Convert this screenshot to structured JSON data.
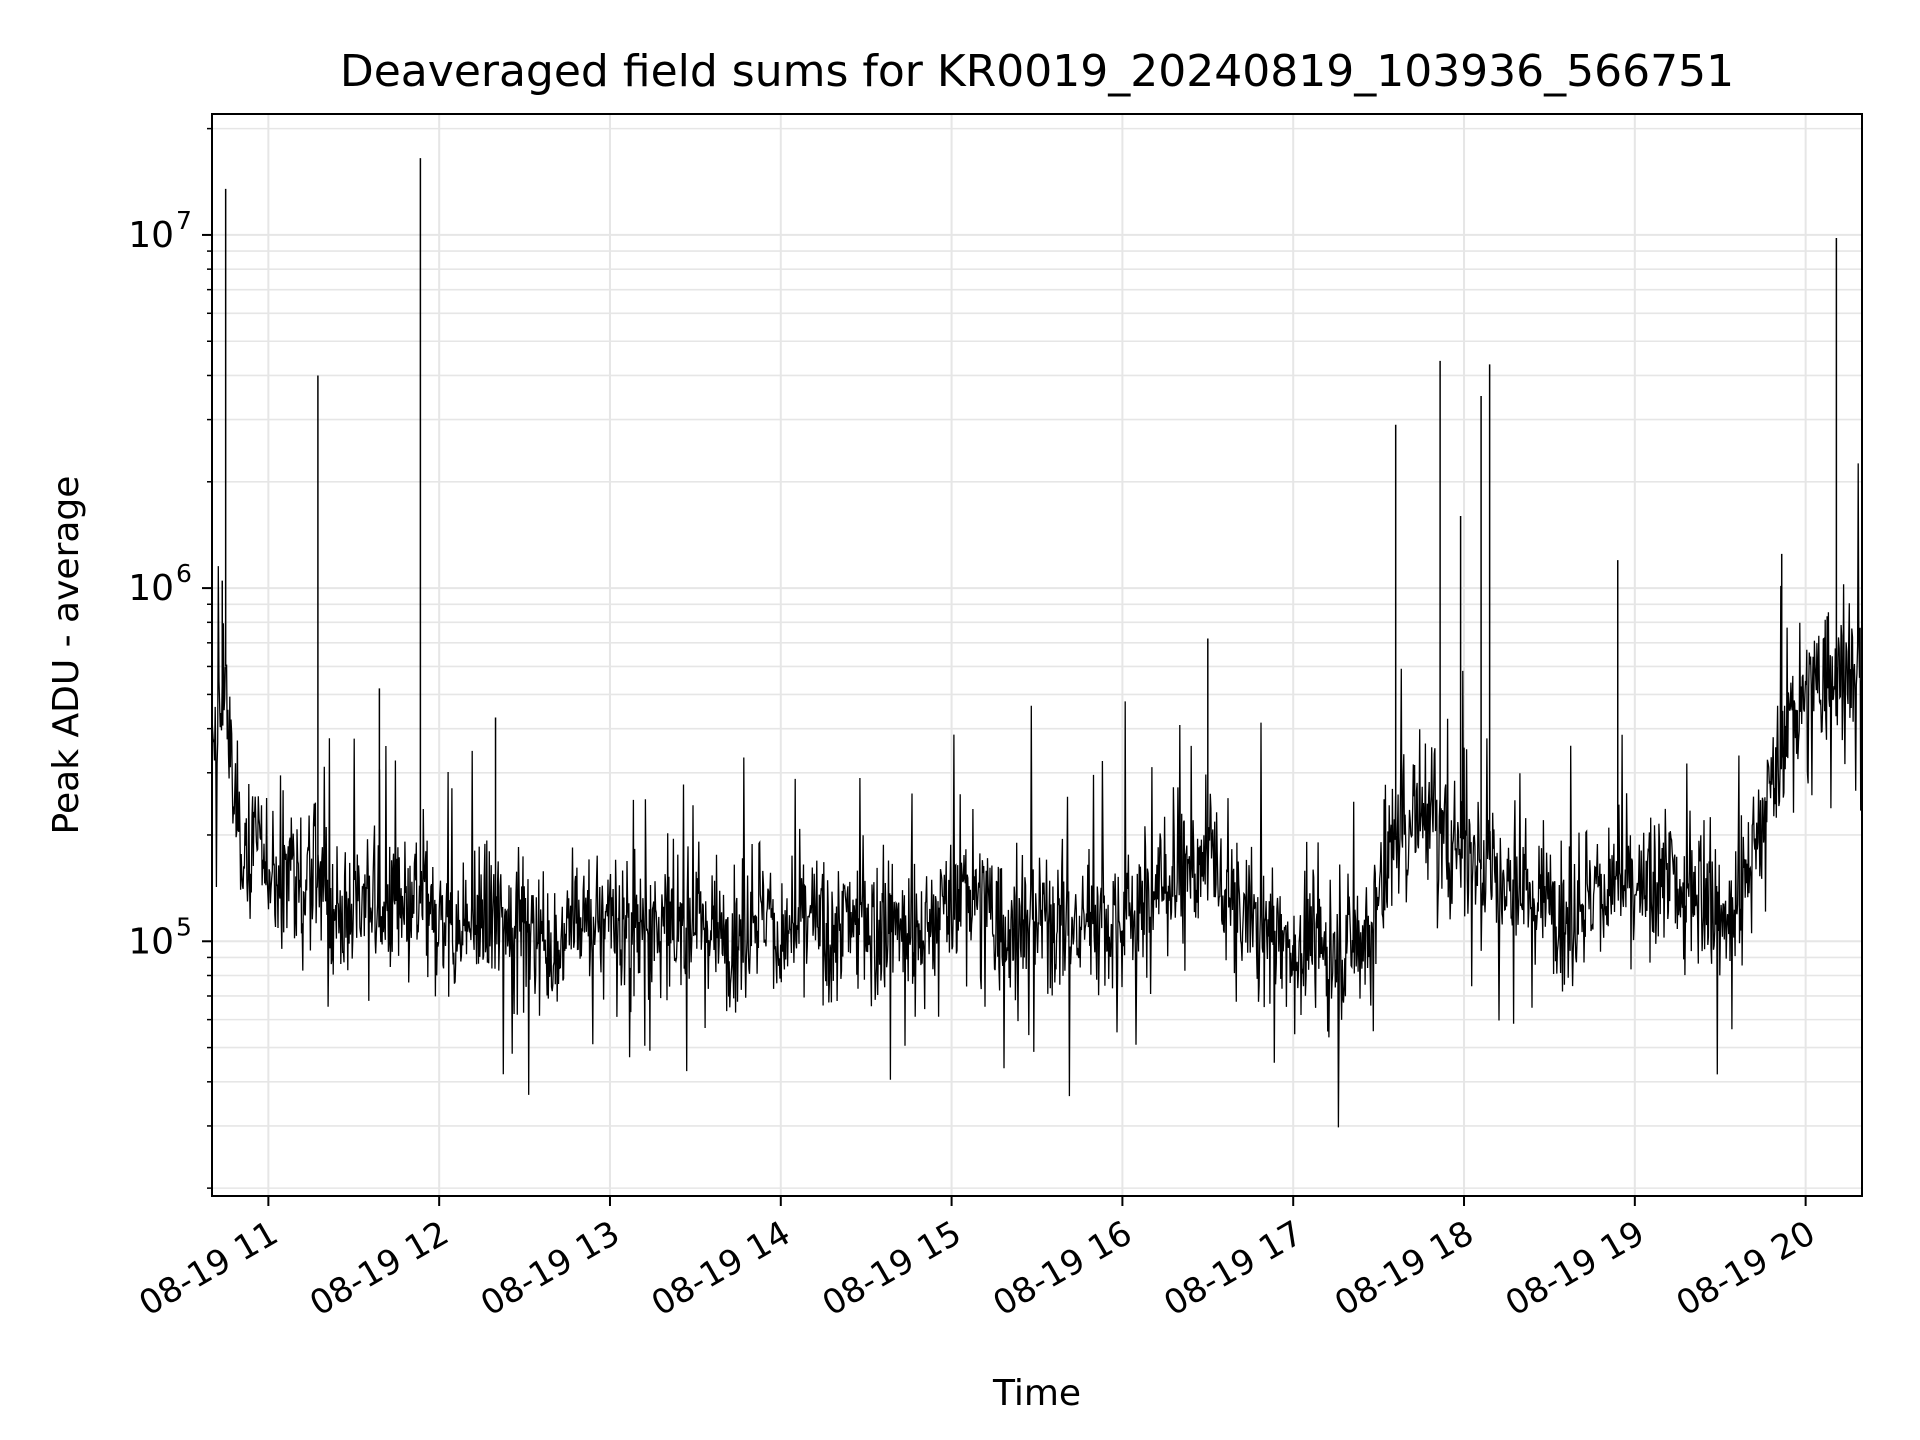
{
  "chart_data": {
    "type": "line",
    "title": "Deaveraged field sums for KR0019_20240819_103936_566751",
    "xlabel": "Time",
    "ylabel": "Peak ADU - average",
    "yscale": "log",
    "ylim": [
      19000,
      22000000
    ],
    "xlim_hours": [
      10.67,
      20.33
    ],
    "grid": true,
    "line_color": "#000000",
    "grid_color": "#e6e6e6",
    "x_ticks": [
      {
        "hour": 11,
        "label": "08-19 11"
      },
      {
        "hour": 12,
        "label": "08-19 12"
      },
      {
        "hour": 13,
        "label": "08-19 13"
      },
      {
        "hour": 14,
        "label": "08-19 14"
      },
      {
        "hour": 15,
        "label": "08-19 15"
      },
      {
        "hour": 16,
        "label": "08-19 16"
      },
      {
        "hour": 17,
        "label": "08-19 17"
      },
      {
        "hour": 18,
        "label": "08-19 18"
      },
      {
        "hour": 19,
        "label": "08-19 19"
      },
      {
        "hour": 20,
        "label": "08-19 20"
      }
    ],
    "y_ticks": [
      {
        "value": 100000,
        "base": "10",
        "exp": "5"
      },
      {
        "value": 1000000,
        "base": "10",
        "exp": "6"
      },
      {
        "value": 10000000,
        "base": "10",
        "exp": "7"
      }
    ],
    "series": [
      {
        "time_hours": [
          10.67,
          10.72,
          10.75,
          10.78,
          10.8,
          10.83,
          10.88,
          10.92,
          10.96,
          11.0,
          11.05,
          11.1,
          11.14,
          11.2,
          11.25,
          11.3,
          11.35,
          11.4,
          11.45,
          11.5,
          11.55,
          11.6,
          11.65,
          11.7,
          11.75,
          11.8,
          11.85,
          11.9,
          11.95,
          12.0,
          12.1,
          12.2,
          12.3,
          12.4,
          12.5,
          12.6,
          12.7,
          12.8,
          12.9,
          13.0,
          13.1,
          13.2,
          13.3,
          13.4,
          13.5,
          13.6,
          13.7,
          13.8,
          13.9,
          14.0,
          14.1,
          14.2,
          14.3,
          14.4,
          14.5,
          14.6,
          14.7,
          14.8,
          14.9,
          15.0,
          15.1,
          15.2,
          15.3,
          15.4,
          15.5,
          15.6,
          15.7,
          15.8,
          15.9,
          16.0,
          16.1,
          16.2,
          16.3,
          16.4,
          16.5,
          16.6,
          16.7,
          16.8,
          16.9,
          17.0,
          17.1,
          17.2,
          17.3,
          17.4,
          17.5,
          17.6,
          17.7,
          17.8,
          17.85,
          17.9,
          18.0,
          18.1,
          18.15,
          18.2,
          18.3,
          18.4,
          18.5,
          18.6,
          18.7,
          18.8,
          18.9,
          19.0,
          19.1,
          19.2,
          19.3,
          19.4,
          19.5,
          19.6,
          19.7,
          19.8,
          19.9,
          20.0,
          20.1,
          20.2,
          20.3
        ],
        "values": [
          320000,
          420000,
          600000,
          300000,
          250000,
          200000,
          180000,
          220000,
          160000,
          170000,
          150000,
          140000,
          190000,
          130000,
          160000,
          150000,
          120000,
          130000,
          110000,
          140000,
          120000,
          150000,
          110000,
          120000,
          130000,
          110000,
          120000,
          130000,
          110000,
          120000,
          100000,
          115000,
          110000,
          120000,
          100000,
          110000,
          95000,
          115000,
          110000,
          125000,
          105000,
          110000,
          115000,
          100000,
          120000,
          110000,
          105000,
          115000,
          125000,
          100000,
          110000,
          115000,
          95000,
          120000,
          105000,
          110000,
          115000,
          100000,
          110000,
          120000,
          140000,
          130000,
          105000,
          110000,
          115000,
          120000,
          100000,
          120000,
          110000,
          125000,
          120000,
          140000,
          150000,
          160000,
          170000,
          130000,
          120000,
          110000,
          105000,
          95000,
          100000,
          90000,
          95000,
          100000,
          130000,
          200000,
          220000,
          250000,
          230000,
          180000,
          200000,
          160000,
          170000,
          140000,
          150000,
          130000,
          140000,
          120000,
          130000,
          140000,
          150000,
          130000,
          140000,
          160000,
          120000,
          150000,
          110000,
          130000,
          180000,
          250000,
          400000,
          500000,
          550000,
          600000,
          550000
        ]
      }
    ],
    "spikes": [
      {
        "hour": 10.75,
        "value": 13500000
      },
      {
        "hour": 10.73,
        "value": 1050000
      },
      {
        "hour": 11.29,
        "value": 4000000
      },
      {
        "hour": 11.89,
        "value": 16500000
      },
      {
        "hour": 11.65,
        "value": 520000
      },
      {
        "hour": 12.33,
        "value": 430000
      },
      {
        "hour": 16.5,
        "value": 720000
      },
      {
        "hour": 17.6,
        "value": 2900000
      },
      {
        "hour": 17.86,
        "value": 4400000
      },
      {
        "hour": 17.98,
        "value": 1600000
      },
      {
        "hour": 18.1,
        "value": 3500000
      },
      {
        "hour": 18.15,
        "value": 4300000
      },
      {
        "hour": 18.9,
        "value": 1200000
      },
      {
        "hour": 19.86,
        "value": 1250000
      },
      {
        "hour": 20.18,
        "value": 9800000
      }
    ]
  }
}
